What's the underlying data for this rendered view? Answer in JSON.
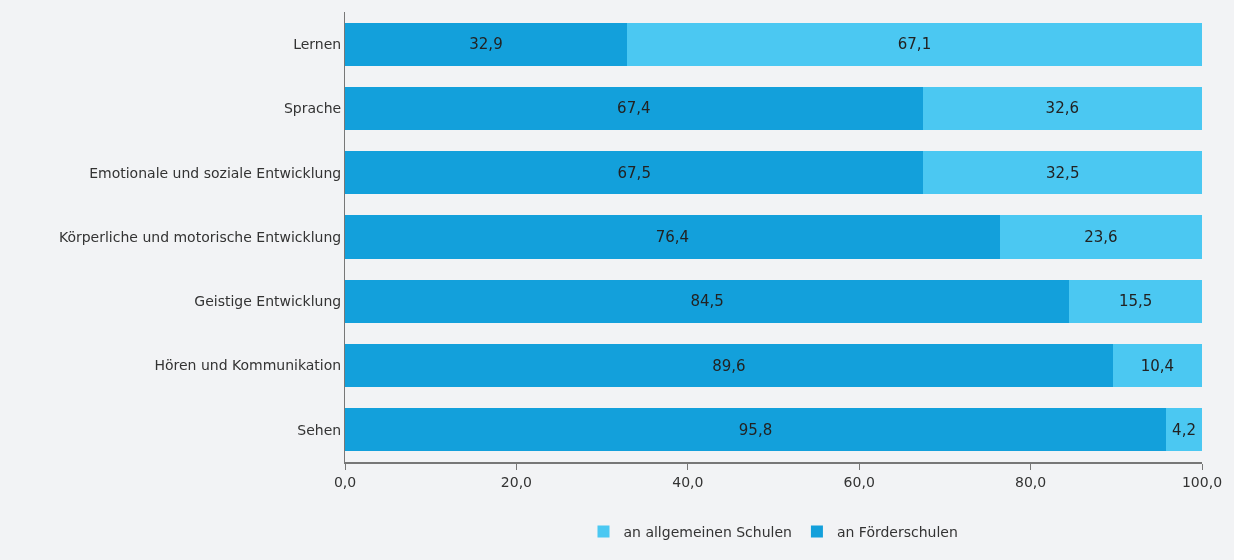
{
  "chart_data": {
    "type": "bar",
    "orientation": "horizontal",
    "stacked": true,
    "categories": [
      "Lernen",
      "Sprache",
      "Emotionale und soziale Entwicklung",
      "Körperliche und motorische Entwicklung",
      "Geistige Entwicklung",
      "Hören und Kommunikation",
      "Sehen"
    ],
    "series": [
      {
        "name": "an Förderschulen",
        "color": "#13a0db",
        "values": [
          32.9,
          67.4,
          67.5,
          76.4,
          84.5,
          89.6,
          95.8
        ],
        "value_labels": [
          "32,9",
          "67,4",
          "67,5",
          "76,4",
          "84,5",
          "89,6",
          "95,8"
        ]
      },
      {
        "name": "an allgemeinen Schulen",
        "color": "#4bc8f2",
        "values": [
          67.1,
          32.6,
          32.5,
          23.6,
          15.5,
          10.4,
          4.2
        ],
        "value_labels": [
          "67,1",
          "32,6",
          "32,5",
          "23,6",
          "15,5",
          "10,4",
          "4,2"
        ]
      }
    ],
    "xlim": [
      0,
      100
    ],
    "xticks": [
      {
        "value": 0,
        "label": "0,0"
      },
      {
        "value": 20,
        "label": "20,0"
      },
      {
        "value": 40,
        "label": "40,0"
      },
      {
        "value": 60,
        "label": "60,0"
      },
      {
        "value": 80,
        "label": "80,0"
      },
      {
        "value": 100,
        "label": "100,0"
      }
    ],
    "grid": false,
    "legend": "bottom"
  }
}
